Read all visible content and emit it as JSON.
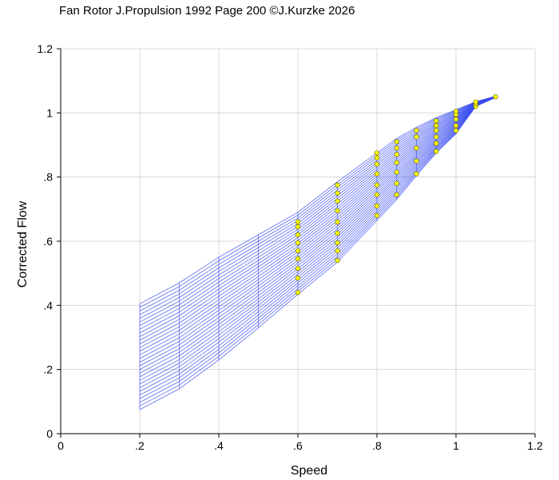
{
  "chart_data": {
    "type": "line",
    "title": "Fan Rotor J.Propulsion 1992 Page 200 ©J.Kurzke 2026",
    "xlabel": "Speed",
    "ylabel": "Corrected Flow",
    "xlim": [
      0,
      1.2
    ],
    "ylim": [
      0,
      1.2
    ],
    "x_ticks": [
      "0",
      ".2",
      ".4",
      ".6",
      ".8",
      "1",
      "1.2"
    ],
    "y_ticks": [
      "0",
      ".2",
      ".4",
      ".6",
      ".8",
      "1",
      "1.2"
    ],
    "grid": true,
    "legend": "none",
    "colors": {
      "lines": "#3b4ef0",
      "points": "#ffff00",
      "grid": "#d9d9d9"
    },
    "line_count": 30,
    "speed_lines": [
      {
        "speed": 0.2,
        "flow_min": 0.075,
        "flow_max": 0.405
      },
      {
        "speed": 0.3,
        "flow_min": 0.14,
        "flow_max": 0.47
      },
      {
        "speed": 0.4,
        "flow_min": 0.23,
        "flow_max": 0.55
      },
      {
        "speed": 0.5,
        "flow_min": 0.33,
        "flow_max": 0.62
      },
      {
        "speed": 0.6,
        "flow_min": 0.435,
        "flow_max": 0.69
      },
      {
        "speed": 0.7,
        "flow_min": 0.535,
        "flow_max": 0.785
      },
      {
        "speed": 0.8,
        "flow_min": 0.665,
        "flow_max": 0.875
      },
      {
        "speed": 0.85,
        "flow_min": 0.73,
        "flow_max": 0.92
      },
      {
        "speed": 0.9,
        "flow_min": 0.805,
        "flow_max": 0.955
      },
      {
        "speed": 0.95,
        "flow_min": 0.875,
        "flow_max": 0.985
      },
      {
        "speed": 1.0,
        "flow_min": 0.935,
        "flow_max": 1.01
      },
      {
        "speed": 1.05,
        "flow_min": 1.02,
        "flow_max": 1.035
      },
      {
        "speed": 1.1,
        "flow_min": 1.048,
        "flow_max": 1.052
      }
    ],
    "measured_points": [
      {
        "speed": 0.6,
        "flow": [
          0.44,
          0.485,
          0.515,
          0.545,
          0.57,
          0.595,
          0.62,
          0.645,
          0.66
        ]
      },
      {
        "speed": 0.7,
        "flow": [
          0.54,
          0.57,
          0.595,
          0.625,
          0.66,
          0.695,
          0.725,
          0.75,
          0.775
        ]
      },
      {
        "speed": 0.8,
        "flow": [
          0.68,
          0.71,
          0.745,
          0.775,
          0.81,
          0.84,
          0.86,
          0.875
        ]
      },
      {
        "speed": 0.85,
        "flow": [
          0.745,
          0.78,
          0.815,
          0.845,
          0.87,
          0.89,
          0.91
        ]
      },
      {
        "speed": 0.9,
        "flow": [
          0.81,
          0.85,
          0.89,
          0.925,
          0.945
        ]
      },
      {
        "speed": 0.95,
        "flow": [
          0.88,
          0.905,
          0.925,
          0.945,
          0.96,
          0.975
        ]
      },
      {
        "speed": 1.0,
        "flow": [
          0.945,
          0.96,
          0.98,
          0.995,
          1.005
        ]
      },
      {
        "speed": 1.05,
        "flow": [
          1.02,
          1.028,
          1.034
        ]
      },
      {
        "speed": 1.1,
        "flow": [
          1.05
        ]
      }
    ]
  }
}
